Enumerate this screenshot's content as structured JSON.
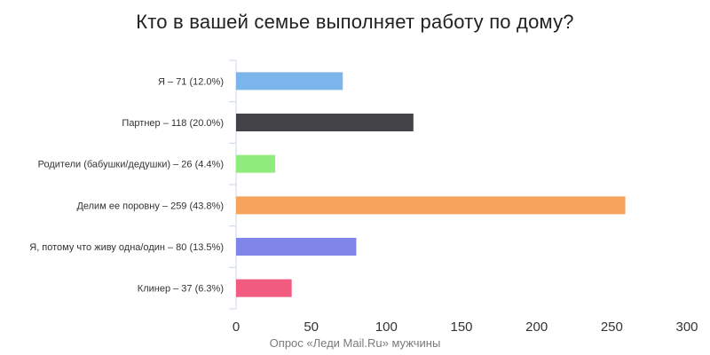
{
  "chart_data": {
    "type": "bar",
    "orientation": "horizontal",
    "title": "Кто в вашей семье выполняет работу по дому?",
    "source": "Опрос «Леди Mail.Ru» мужчины",
    "categories": [
      "Я – 71 (12.0%)",
      "Партнер – 118 (20.0%)",
      "Родители (бабушки/дедушки) – 26 (4.4%)",
      "Делим ее поровну – 259 (43.8%)",
      "Я, потому что живу одна/один – 80 (13.5%)",
      "Клинер – 37 (6.3%)"
    ],
    "values": [
      71,
      118,
      26,
      259,
      80,
      37
    ],
    "colors": [
      "#7cb5ec",
      "#434348",
      "#90ed7d",
      "#f7a35c",
      "#8085e9",
      "#f15c80"
    ],
    "xlim": [
      0,
      300
    ],
    "xticks": [
      0,
      50,
      100,
      150,
      200,
      250,
      300
    ],
    "grid": false,
    "legend": "none"
  }
}
